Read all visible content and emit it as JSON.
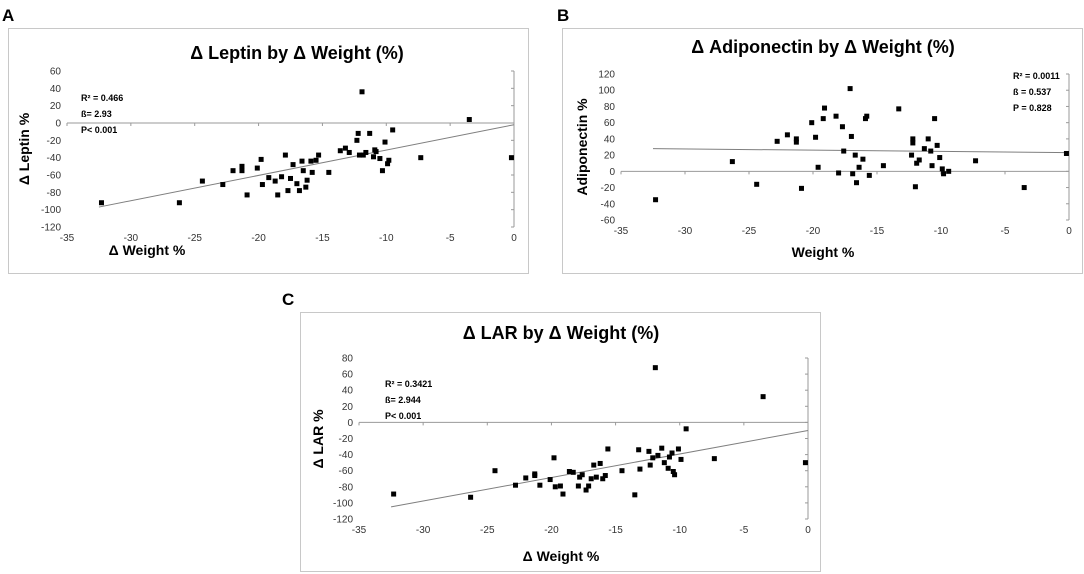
{
  "chart_data": [
    {
      "panel": "A",
      "type": "scatter",
      "title": "Δ Leptin by Δ Weight (%)",
      "xlabel": "Δ Weight %",
      "ylabel": "Δ Leptin %",
      "xlim": [
        -35,
        0
      ],
      "ylim": [
        -120,
        60
      ],
      "xticks": [
        -35,
        -30,
        -25,
        -20,
        -15,
        -10,
        -5,
        0
      ],
      "yticks": [
        -120,
        -100,
        -80,
        -60,
        -40,
        -20,
        0,
        20,
        40,
        60
      ],
      "stats": [
        "R² = 0.466",
        "ß= 2.93",
        "P< 0.001"
      ],
      "trendline": [
        [
          -32.5,
          -97
        ],
        [
          0,
          -2
        ]
      ],
      "points": [
        [
          -32.3,
          -92
        ],
        [
          -26.2,
          -92
        ],
        [
          -24.4,
          -67
        ],
        [
          -22.8,
          -71
        ],
        [
          -22,
          -55
        ],
        [
          -21.3,
          -50
        ],
        [
          -21.3,
          -55
        ],
        [
          -20.9,
          -83
        ],
        [
          -20.1,
          -52
        ],
        [
          -19.8,
          -42
        ],
        [
          -19.7,
          -71
        ],
        [
          -19.2,
          -63
        ],
        [
          -18.7,
          -67
        ],
        [
          -18.5,
          -83
        ],
        [
          -18.2,
          -62
        ],
        [
          -17.9,
          -37
        ],
        [
          -17.7,
          -78
        ],
        [
          -17.5,
          -64
        ],
        [
          -17.3,
          -48
        ],
        [
          -17,
          -70
        ],
        [
          -16.8,
          -78
        ],
        [
          -16.6,
          -44
        ],
        [
          -16.5,
          -55
        ],
        [
          -16.3,
          -74
        ],
        [
          -16.2,
          -66
        ],
        [
          -15.9,
          -44
        ],
        [
          -15.8,
          -57
        ],
        [
          -15.5,
          -43
        ],
        [
          -15.3,
          -37
        ],
        [
          -14.5,
          -57
        ],
        [
          -13.6,
          -32
        ],
        [
          -13.2,
          -29
        ],
        [
          -12.9,
          -34
        ],
        [
          -12.3,
          -20
        ],
        [
          -12.2,
          -12
        ],
        [
          -12.1,
          -37
        ],
        [
          -11.9,
          36
        ],
        [
          -11.8,
          -37
        ],
        [
          -11.6,
          -34
        ],
        [
          -11.3,
          -12
        ],
        [
          -11,
          -39
        ],
        [
          -10.9,
          -31
        ],
        [
          -10.8,
          -33
        ],
        [
          -10.5,
          -41
        ],
        [
          -10.3,
          -55
        ],
        [
          -10.1,
          -22
        ],
        [
          -9.9,
          -47
        ],
        [
          -9.8,
          -43
        ],
        [
          -9.5,
          -8
        ],
        [
          -3.5,
          4
        ],
        [
          -7.3,
          -40
        ],
        [
          -0.2,
          -40
        ]
      ]
    },
    {
      "panel": "B",
      "type": "scatter",
      "title": "Δ Adiponectin by Δ Weight (%)",
      "xlabel": "Weight %",
      "ylabel": "Adiponectin %",
      "xlim": [
        -35,
        0
      ],
      "ylim": [
        -60,
        120
      ],
      "xticks": [
        -35,
        -30,
        -25,
        -20,
        -15,
        -10,
        -5,
        0
      ],
      "yticks": [
        -60,
        -40,
        -20,
        0,
        20,
        40,
        60,
        80,
        100,
        120
      ],
      "stats": [
        "R² = 0.0011",
        "ß = 0.537",
        "P = 0.828"
      ],
      "trendline": [
        [
          -32.5,
          28
        ],
        [
          0,
          23
        ]
      ],
      "points": [
        [
          -32.3,
          -35
        ],
        [
          -26.3,
          12
        ],
        [
          -24.4,
          -16
        ],
        [
          -22.8,
          37
        ],
        [
          -22,
          45
        ],
        [
          -21.3,
          40
        ],
        [
          -21.3,
          36
        ],
        [
          -20.9,
          -21
        ],
        [
          -20.1,
          60
        ],
        [
          -19.8,
          42
        ],
        [
          -19.6,
          5
        ],
        [
          -19.2,
          65
        ],
        [
          -19.1,
          78
        ],
        [
          -18.2,
          68
        ],
        [
          -18,
          -2
        ],
        [
          -17.7,
          55
        ],
        [
          -17.6,
          25
        ],
        [
          -17.1,
          102
        ],
        [
          -17,
          43
        ],
        [
          -16.9,
          -3
        ],
        [
          -16.7,
          20
        ],
        [
          -16.6,
          -14
        ],
        [
          -16.4,
          5
        ],
        [
          -16.1,
          15
        ],
        [
          -15.9,
          65
        ],
        [
          -15.8,
          68
        ],
        [
          -15.6,
          -5
        ],
        [
          -14.5,
          7
        ],
        [
          -13.3,
          77
        ],
        [
          -12.3,
          20
        ],
        [
          -12.2,
          35
        ],
        [
          -12.2,
          40
        ],
        [
          -12,
          -19
        ],
        [
          -11.9,
          10
        ],
        [
          -11.7,
          14
        ],
        [
          -11.3,
          28
        ],
        [
          -11,
          40
        ],
        [
          -10.8,
          25
        ],
        [
          -10.7,
          7
        ],
        [
          -10.5,
          65
        ],
        [
          -10.3,
          32
        ],
        [
          -10.1,
          17
        ],
        [
          -9.9,
          3
        ],
        [
          -9.8,
          -3
        ],
        [
          -9.4,
          0
        ],
        [
          -7.3,
          13
        ],
        [
          -3.5,
          -20
        ],
        [
          -0.2,
          22
        ]
      ]
    },
    {
      "panel": "C",
      "type": "scatter",
      "title": "Δ LAR by Δ Weight (%)",
      "xlabel": "Δ Weight %",
      "ylabel": "Δ LAR %",
      "xlim": [
        -35,
        0
      ],
      "ylim": [
        -120,
        80
      ],
      "xticks": [
        -35,
        -30,
        -25,
        -20,
        -15,
        -10,
        -5,
        0
      ],
      "yticks": [
        -120,
        -100,
        -80,
        -60,
        -40,
        -20,
        0,
        20,
        40,
        60,
        80
      ],
      "stats": [
        "R² = 0.3421",
        "ß= 2.944",
        "P< 0.001"
      ],
      "trendline": [
        [
          -32.5,
          -105
        ],
        [
          0,
          -10
        ]
      ],
      "points": [
        [
          -32.3,
          -89
        ],
        [
          -26.3,
          -93
        ],
        [
          -24.4,
          -60
        ],
        [
          -22.8,
          -78
        ],
        [
          -22,
          -69
        ],
        [
          -21.3,
          -66
        ],
        [
          -21.3,
          -64
        ],
        [
          -20.9,
          -78
        ],
        [
          -20.1,
          -71
        ],
        [
          -19.8,
          -44
        ],
        [
          -19.7,
          -80
        ],
        [
          -19.3,
          -79
        ],
        [
          -19.1,
          -89
        ],
        [
          -18.6,
          -61
        ],
        [
          -18.3,
          -62
        ],
        [
          -17.9,
          -79
        ],
        [
          -17.8,
          -68
        ],
        [
          -17.6,
          -65
        ],
        [
          -17.3,
          -84
        ],
        [
          -17.1,
          -79
        ],
        [
          -16.9,
          -70
        ],
        [
          -16.7,
          -53
        ],
        [
          -16.5,
          -68
        ],
        [
          -16.2,
          -51
        ],
        [
          -16,
          -70
        ],
        [
          -15.8,
          -66
        ],
        [
          -15.6,
          -33
        ],
        [
          -14.5,
          -60
        ],
        [
          -13.5,
          -90
        ],
        [
          -13.2,
          -34
        ],
        [
          -13.1,
          -58
        ],
        [
          -12.4,
          -36
        ],
        [
          -12.3,
          -53
        ],
        [
          -12.1,
          -44
        ],
        [
          -11.9,
          68
        ],
        [
          -11.7,
          -41
        ],
        [
          -11.4,
          -32
        ],
        [
          -11.2,
          -50
        ],
        [
          -10.9,
          -57
        ],
        [
          -10.8,
          -43
        ],
        [
          -10.6,
          -38
        ],
        [
          -10.5,
          -61
        ],
        [
          -10.4,
          -65
        ],
        [
          -10.1,
          -33
        ],
        [
          -9.9,
          -46
        ],
        [
          -9.5,
          -8
        ],
        [
          -7.3,
          -45
        ],
        [
          -3.5,
          32
        ],
        [
          -0.2,
          -50
        ]
      ]
    }
  ]
}
